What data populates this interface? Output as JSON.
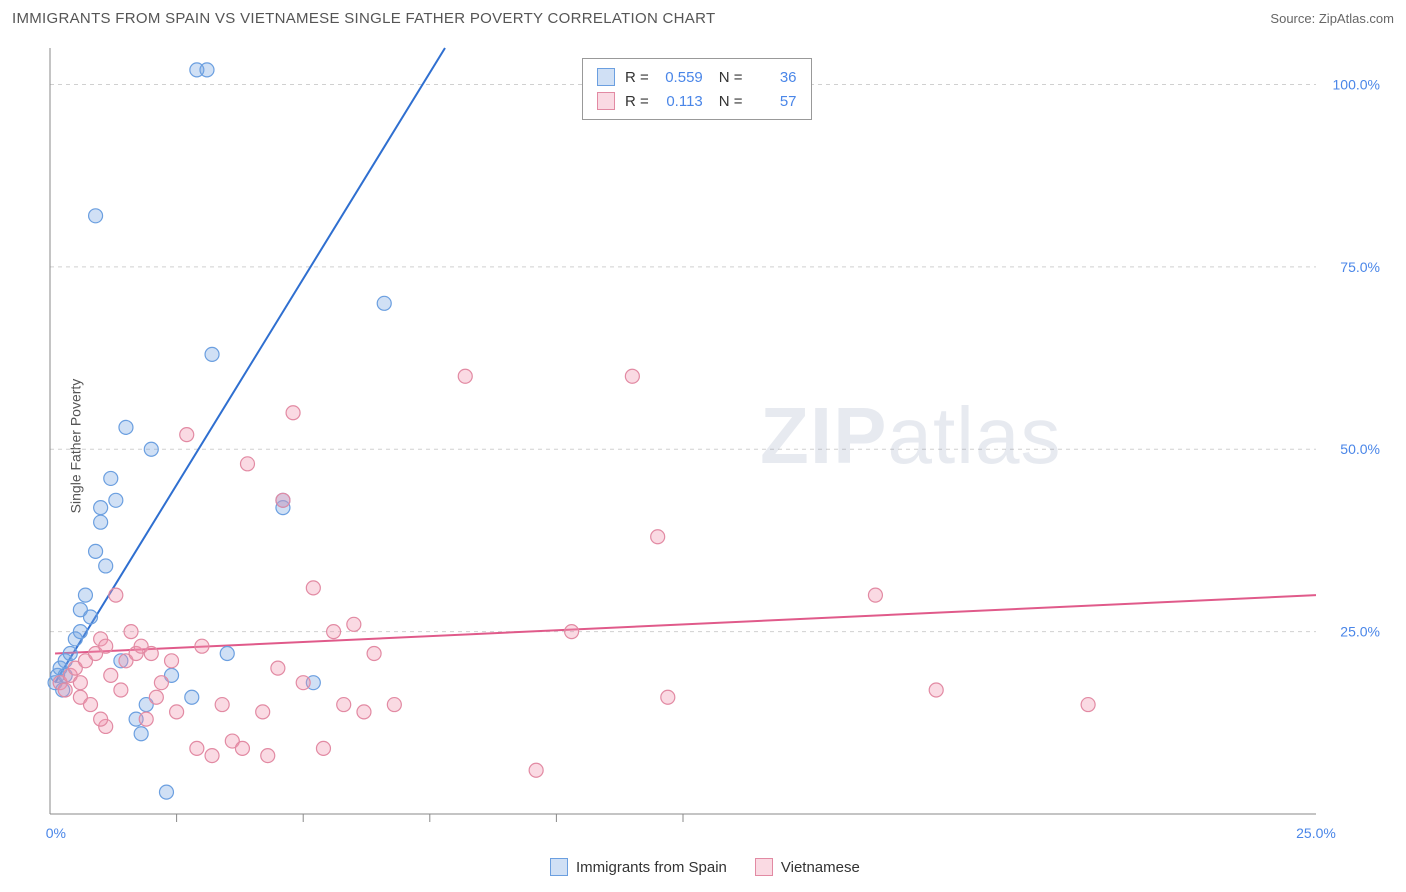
{
  "title": "IMMIGRANTS FROM SPAIN VS VIETNAMESE SINGLE FATHER POVERTY CORRELATION CHART",
  "source_label": "Source:",
  "source_value": "ZipAtlas.com",
  "yaxis_label": "Single Father Poverty",
  "watermark_a": "ZIP",
  "watermark_b": "atlas",
  "chart": {
    "type": "scatter-with-trend",
    "xlim": [
      0,
      25
    ],
    "ylim": [
      0,
      105
    ],
    "xtick_major": [
      0,
      25
    ],
    "xtick_minor": [
      2.5,
      5,
      7.5,
      10,
      12.5
    ],
    "ytick_major": [
      25,
      50,
      75,
      100
    ],
    "ytick_labels": [
      "25.0%",
      "50.0%",
      "75.0%",
      "100.0%"
    ],
    "xtick_labels": [
      "0.0%",
      "25.0%"
    ],
    "background_color": "#ffffff",
    "grid_color": "#d0d0d0",
    "axis_color": "#888888",
    "label_color": "#4a86e8",
    "marker_radius": 7,
    "marker_stroke_width": 1.2,
    "trend_width": 2,
    "series": [
      {
        "name": "Immigrants from Spain",
        "fill": "rgba(120,165,225,0.35)",
        "stroke": "#6b9fe0",
        "trend_color": "#2f6fd0",
        "trend": {
          "x1": 0.1,
          "y1": 18,
          "x2": 7.8,
          "y2": 105
        },
        "points": [
          [
            0.1,
            18
          ],
          [
            0.15,
            19
          ],
          [
            0.2,
            20
          ],
          [
            0.25,
            17
          ],
          [
            0.3,
            21
          ],
          [
            0.3,
            19
          ],
          [
            0.4,
            22
          ],
          [
            0.5,
            24
          ],
          [
            0.6,
            28
          ],
          [
            0.6,
            25
          ],
          [
            0.7,
            30
          ],
          [
            0.8,
            27
          ],
          [
            0.9,
            36
          ],
          [
            1.0,
            40
          ],
          [
            1.0,
            42
          ],
          [
            1.1,
            34
          ],
          [
            1.2,
            46
          ],
          [
            1.3,
            43
          ],
          [
            1.5,
            53
          ],
          [
            1.7,
            13
          ],
          [
            1.8,
            11
          ],
          [
            1.9,
            15
          ],
          [
            2.0,
            50
          ],
          [
            2.3,
            3
          ],
          [
            2.4,
            19
          ],
          [
            0.9,
            82
          ],
          [
            2.9,
            102
          ],
          [
            3.1,
            102
          ],
          [
            3.2,
            63
          ],
          [
            2.8,
            16
          ],
          [
            4.6,
            42
          ],
          [
            4.6,
            43
          ],
          [
            5.2,
            18
          ],
          [
            6.6,
            70
          ],
          [
            3.5,
            22
          ],
          [
            1.4,
            21
          ]
        ]
      },
      {
        "name": "Vietnamese",
        "fill": "rgba(240,150,175,0.35)",
        "stroke": "#e28aa3",
        "trend_color": "#e05a8a",
        "trend": {
          "x1": 0.1,
          "y1": 22,
          "x2": 25,
          "y2": 30
        },
        "points": [
          [
            0.2,
            18
          ],
          [
            0.3,
            17
          ],
          [
            0.4,
            19
          ],
          [
            0.5,
            20
          ],
          [
            0.6,
            16
          ],
          [
            0.7,
            21
          ],
          [
            0.8,
            15
          ],
          [
            0.9,
            22
          ],
          [
            1.0,
            24
          ],
          [
            1.1,
            23
          ],
          [
            1.2,
            19
          ],
          [
            1.3,
            30
          ],
          [
            1.4,
            17
          ],
          [
            1.5,
            21
          ],
          [
            1.6,
            25
          ],
          [
            1.7,
            22
          ],
          [
            1.8,
            23
          ],
          [
            1.9,
            13
          ],
          [
            2.0,
            22
          ],
          [
            2.2,
            18
          ],
          [
            2.4,
            21
          ],
          [
            2.5,
            14
          ],
          [
            2.7,
            52
          ],
          [
            2.9,
            9
          ],
          [
            3.0,
            23
          ],
          [
            3.2,
            8
          ],
          [
            3.4,
            15
          ],
          [
            3.6,
            10
          ],
          [
            3.8,
            9
          ],
          [
            3.9,
            48
          ],
          [
            4.2,
            14
          ],
          [
            4.3,
            8
          ],
          [
            4.5,
            20
          ],
          [
            4.6,
            43
          ],
          [
            4.8,
            55
          ],
          [
            5.0,
            18
          ],
          [
            5.2,
            31
          ],
          [
            5.4,
            9
          ],
          [
            5.6,
            25
          ],
          [
            5.8,
            15
          ],
          [
            6.0,
            26
          ],
          [
            6.2,
            14
          ],
          [
            6.4,
            22
          ],
          [
            6.8,
            15
          ],
          [
            8.2,
            60
          ],
          [
            9.6,
            6
          ],
          [
            10.3,
            25
          ],
          [
            11.5,
            60
          ],
          [
            12.0,
            38
          ],
          [
            12.2,
            16
          ],
          [
            16.3,
            30
          ],
          [
            17.5,
            17
          ],
          [
            20.5,
            15
          ],
          [
            1.1,
            12
          ],
          [
            2.1,
            16
          ],
          [
            0.6,
            18
          ],
          [
            1.0,
            13
          ]
        ]
      }
    ]
  },
  "legend_stats": {
    "rows": [
      {
        "swatch_fill": "rgba(120,165,225,0.35)",
        "swatch_stroke": "#6b9fe0",
        "r_label": "R =",
        "r_value": "0.559",
        "n_label": "N =",
        "n_value": "36"
      },
      {
        "swatch_fill": "rgba(240,150,175,0.35)",
        "swatch_stroke": "#e28aa3",
        "r_label": "R =",
        "r_value": "0.113",
        "n_label": "N =",
        "n_value": "57"
      }
    ]
  },
  "xaxis_legend": {
    "items": [
      {
        "swatch_fill": "rgba(120,165,225,0.35)",
        "swatch_stroke": "#6b9fe0",
        "label": "Immigrants from Spain"
      },
      {
        "swatch_fill": "rgba(240,150,175,0.35)",
        "swatch_stroke": "#e28aa3",
        "label": "Vietnamese"
      }
    ]
  }
}
